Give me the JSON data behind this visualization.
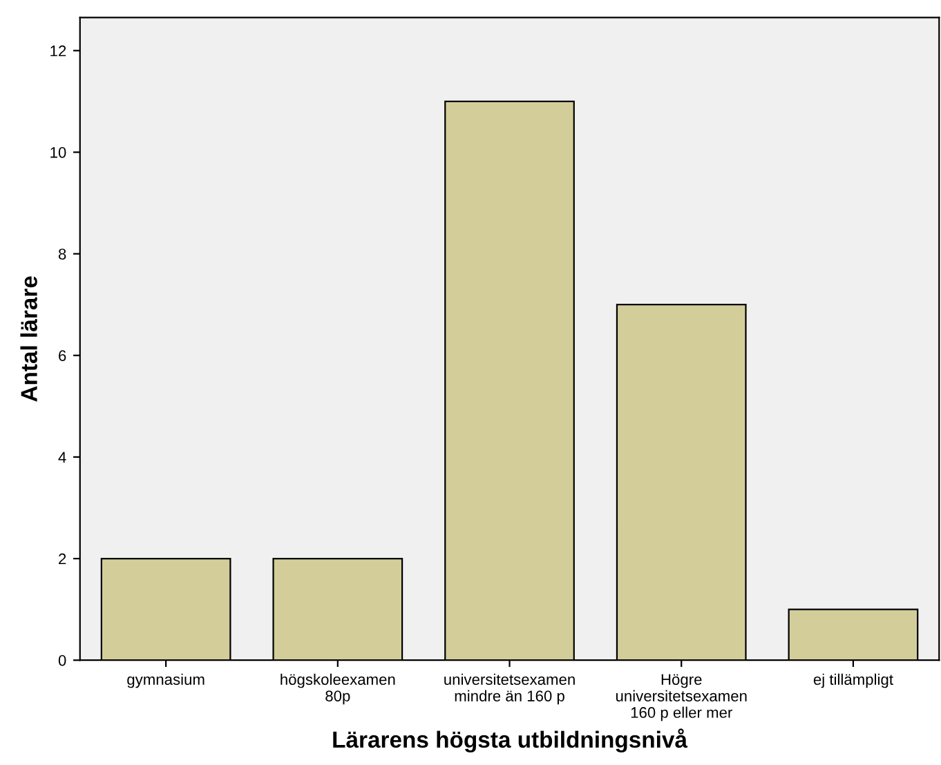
{
  "chart_data": {
    "type": "bar",
    "xlabel": "Lärarens högsta utbildningsnivå",
    "ylabel": "Antal lärare",
    "categories": [
      "gymnasium",
      "högskoleexamen\n80p",
      "universitetsexamen\nmindre än 160 p",
      "Högre\nuniversitetsexamen\n160 p eller mer",
      "ej tillämpligt"
    ],
    "values": [
      2,
      2,
      11,
      7,
      1
    ],
    "color": "#d3ce99",
    "ylim": [
      0,
      12.65
    ],
    "yticks": [
      0,
      2,
      4,
      6,
      8,
      10,
      12
    ],
    "grid": false
  }
}
